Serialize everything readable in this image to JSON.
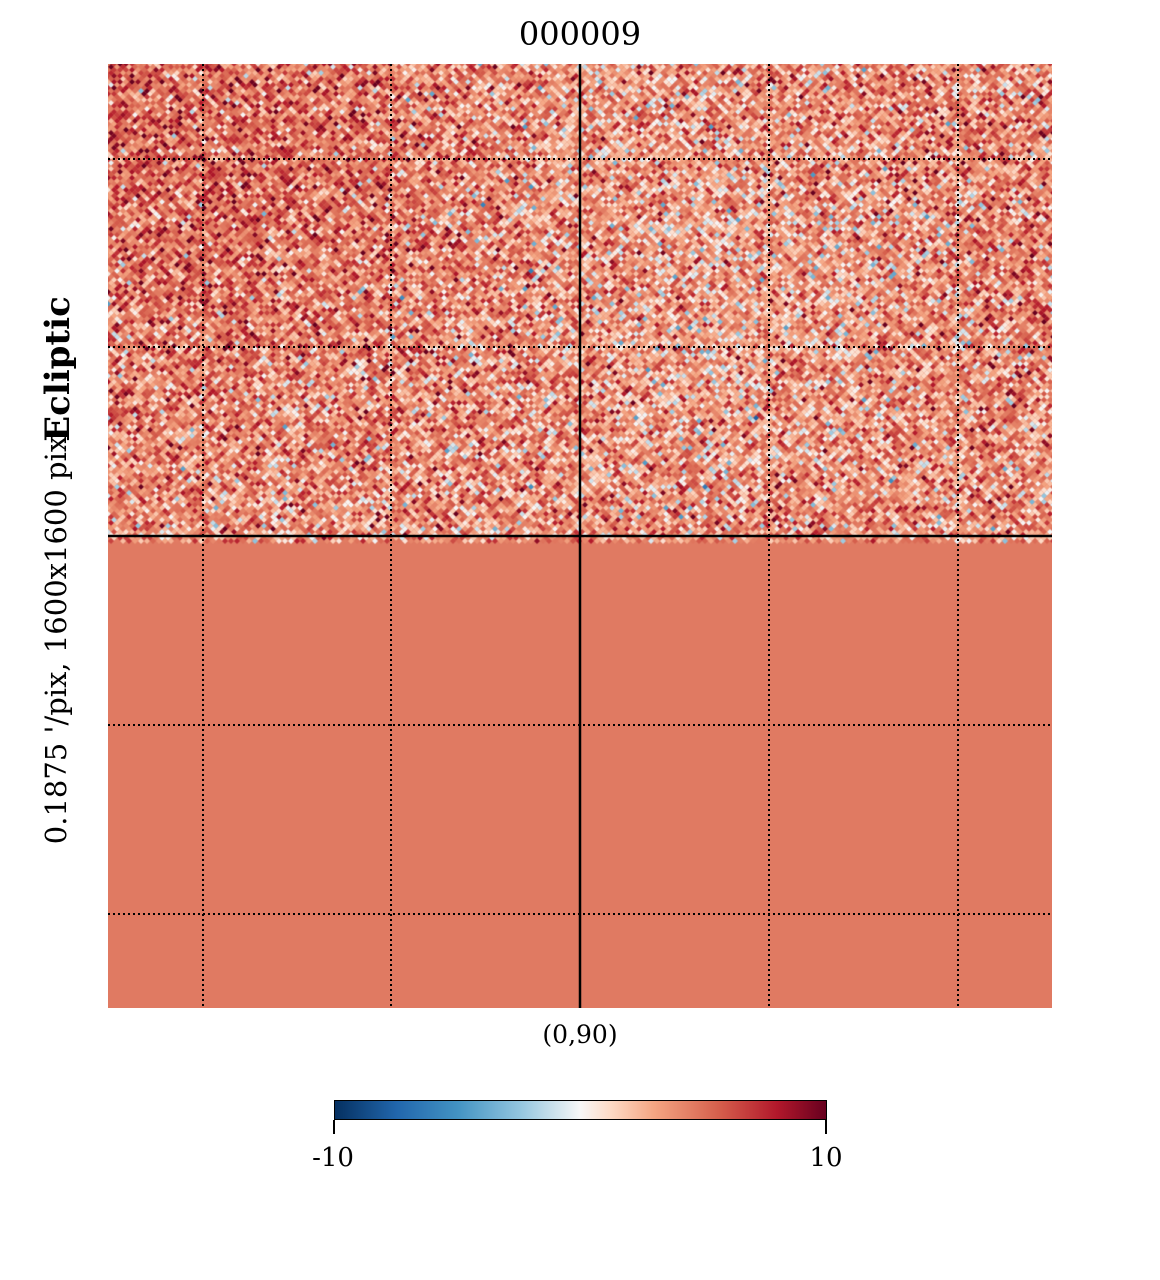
{
  "chart_data": {
    "type": "heatmap",
    "title": "000009",
    "projection": "gnomonic",
    "coordinate_system": "Ecliptic",
    "resolution_label": "0.1875 '/pix,   1600x1600 pix",
    "center_label": "(0,90)",
    "colorbar": {
      "min": -10,
      "max": 10,
      "min_label": "-10",
      "max_label": "10",
      "colormap": "RdBu_r",
      "orientation": "horizontal"
    },
    "graticule": "dotted",
    "central_axes": "solid"
  },
  "colors": {
    "low": "#053061",
    "mid": "#f7f7f7",
    "high": "#67001f",
    "graticule": "#000000"
  }
}
